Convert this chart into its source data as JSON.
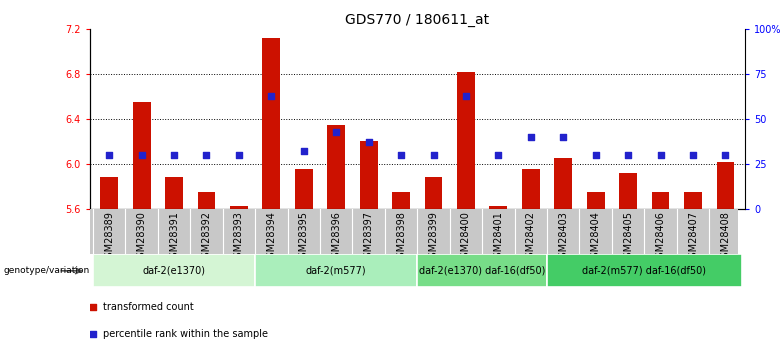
{
  "title": "GDS770 / 180611_at",
  "samples": [
    "GSM28389",
    "GSM28390",
    "GSM28391",
    "GSM28392",
    "GSM28393",
    "GSM28394",
    "GSM28395",
    "GSM28396",
    "GSM28397",
    "GSM28398",
    "GSM28399",
    "GSM28400",
    "GSM28401",
    "GSM28402",
    "GSM28403",
    "GSM28404",
    "GSM28405",
    "GSM28406",
    "GSM28407",
    "GSM28408"
  ],
  "transformed_count": [
    5.88,
    6.55,
    5.88,
    5.75,
    5.62,
    7.12,
    5.95,
    6.35,
    6.2,
    5.75,
    5.88,
    6.82,
    5.62,
    5.95,
    6.05,
    5.75,
    5.92,
    5.75,
    5.75,
    6.02
  ],
  "percentile_rank": [
    30,
    30,
    30,
    30,
    30,
    63,
    32,
    43,
    37,
    30,
    30,
    63,
    30,
    40,
    40,
    30,
    30,
    30,
    30,
    30
  ],
  "ylim": [
    5.6,
    7.2
  ],
  "y2lim": [
    0,
    100
  ],
  "yticks": [
    5.6,
    6.0,
    6.4,
    6.8,
    7.2
  ],
  "y2ticks": [
    0,
    25,
    50,
    75,
    100
  ],
  "y2ticklabels": [
    "0",
    "25",
    "50",
    "75",
    "100%"
  ],
  "groups": [
    {
      "label": "daf-2(e1370)",
      "start": 0,
      "end": 4,
      "color": "#d4f5d4"
    },
    {
      "label": "daf-2(m577)",
      "start": 5,
      "end": 9,
      "color": "#aaeebb"
    },
    {
      "label": "daf-2(e1370) daf-16(df50)",
      "start": 10,
      "end": 13,
      "color": "#77dd88"
    },
    {
      "label": "daf-2(m577) daf-16(df50)",
      "start": 14,
      "end": 19,
      "color": "#44cc66"
    }
  ],
  "bar_color": "#cc1100",
  "dot_color": "#2222cc",
  "bar_width": 0.55,
  "dot_size": 22,
  "title_fontsize": 10,
  "tick_fontsize": 7,
  "label_fontsize": 7,
  "group_fontsize": 7,
  "genotype_label": "genotype/variation",
  "legend_items": [
    {
      "label": "transformed count",
      "color": "#cc1100"
    },
    {
      "label": "percentile rank within the sample",
      "color": "#2222cc"
    }
  ]
}
